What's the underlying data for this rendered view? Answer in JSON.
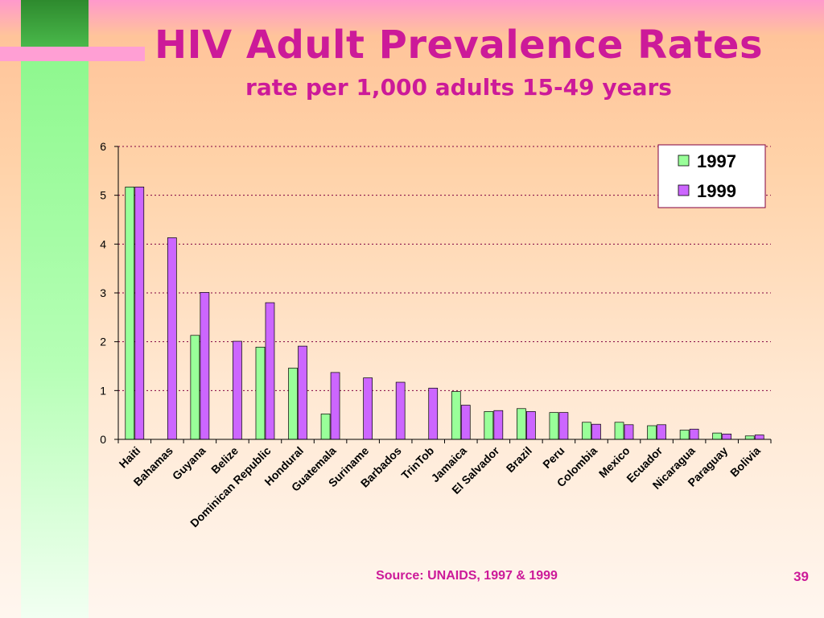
{
  "slide": {
    "title": "HIV Adult Prevalence Rates",
    "subtitle": "rate per 1,000 adults 15-49 years",
    "source": "Source:  UNAIDS, 1997 & 1999",
    "slide_number": "39"
  },
  "colors": {
    "series_1997": "#99ff99",
    "series_1999": "#cc66ff",
    "title": "#cc1a99",
    "gridline": "#800040"
  },
  "chart_data": {
    "type": "bar",
    "title": "",
    "xlabel": "",
    "ylabel": "",
    "ylim": [
      0,
      6
    ],
    "yticks": [
      "0",
      "1",
      "2",
      "3",
      "4",
      "5",
      "6"
    ],
    "grid": true,
    "legend_position": "top-right",
    "categories": [
      "Haiti",
      "Bahamas",
      "Guyana",
      "Belize",
      "Dominican Republic",
      "Hondural",
      "Guatemala",
      "Suriname",
      "Barbados",
      "TrinTob",
      "Jamaica",
      "El Salvador",
      "Brazil",
      "Peru",
      "Colombia",
      "Mexico",
      "Ecuador",
      "Nicaragua",
      "Paraguay",
      "Bolivia"
    ],
    "series": [
      {
        "name": "1997",
        "values": [
          5.17,
          0,
          2.13,
          0,
          1.89,
          1.46,
          0.52,
          0,
          0,
          0,
          0.98,
          0.57,
          0.63,
          0.55,
          0.35,
          0.35,
          0.28,
          0.19,
          0.13,
          0.07
        ]
      },
      {
        "name": "1999",
        "values": [
          5.17,
          4.13,
          3.01,
          2.01,
          2.8,
          1.91,
          1.37,
          1.26,
          1.17,
          1.05,
          0.7,
          0.59,
          0.57,
          0.55,
          0.31,
          0.3,
          0.3,
          0.21,
          0.11,
          0.09
        ]
      }
    ]
  }
}
